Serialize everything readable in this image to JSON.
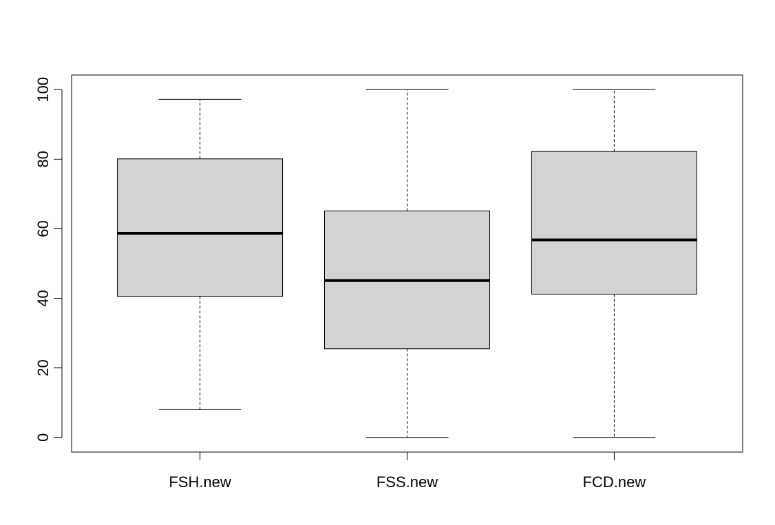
{
  "chart_data": {
    "type": "boxplot",
    "title": "",
    "xlabel": "",
    "ylabel": "",
    "ylim": [
      -4.2,
      104.2
    ],
    "yticks": [
      0,
      20,
      40,
      60,
      80,
      100
    ],
    "ytick_labels": [
      "0",
      "20",
      "40",
      "60",
      "80",
      "100"
    ],
    "categories": [
      "FSH.new",
      "FSS.new",
      "FCD.new"
    ],
    "boxes": [
      {
        "label": "FSH.new",
        "min": 8,
        "q1": 40.6,
        "median": 58.7,
        "q3": 80.1,
        "max": 97.2
      },
      {
        "label": "FSS.new",
        "min": 0,
        "q1": 25.5,
        "median": 45.1,
        "q3": 65.1,
        "max": 100
      },
      {
        "label": "FCD.new",
        "min": 0,
        "q1": 41.2,
        "median": 56.8,
        "q3": 82.2,
        "max": 100
      }
    ],
    "box_fill": "#d3d3d3",
    "line_color": "#000000",
    "grid": false,
    "legend": "none"
  }
}
